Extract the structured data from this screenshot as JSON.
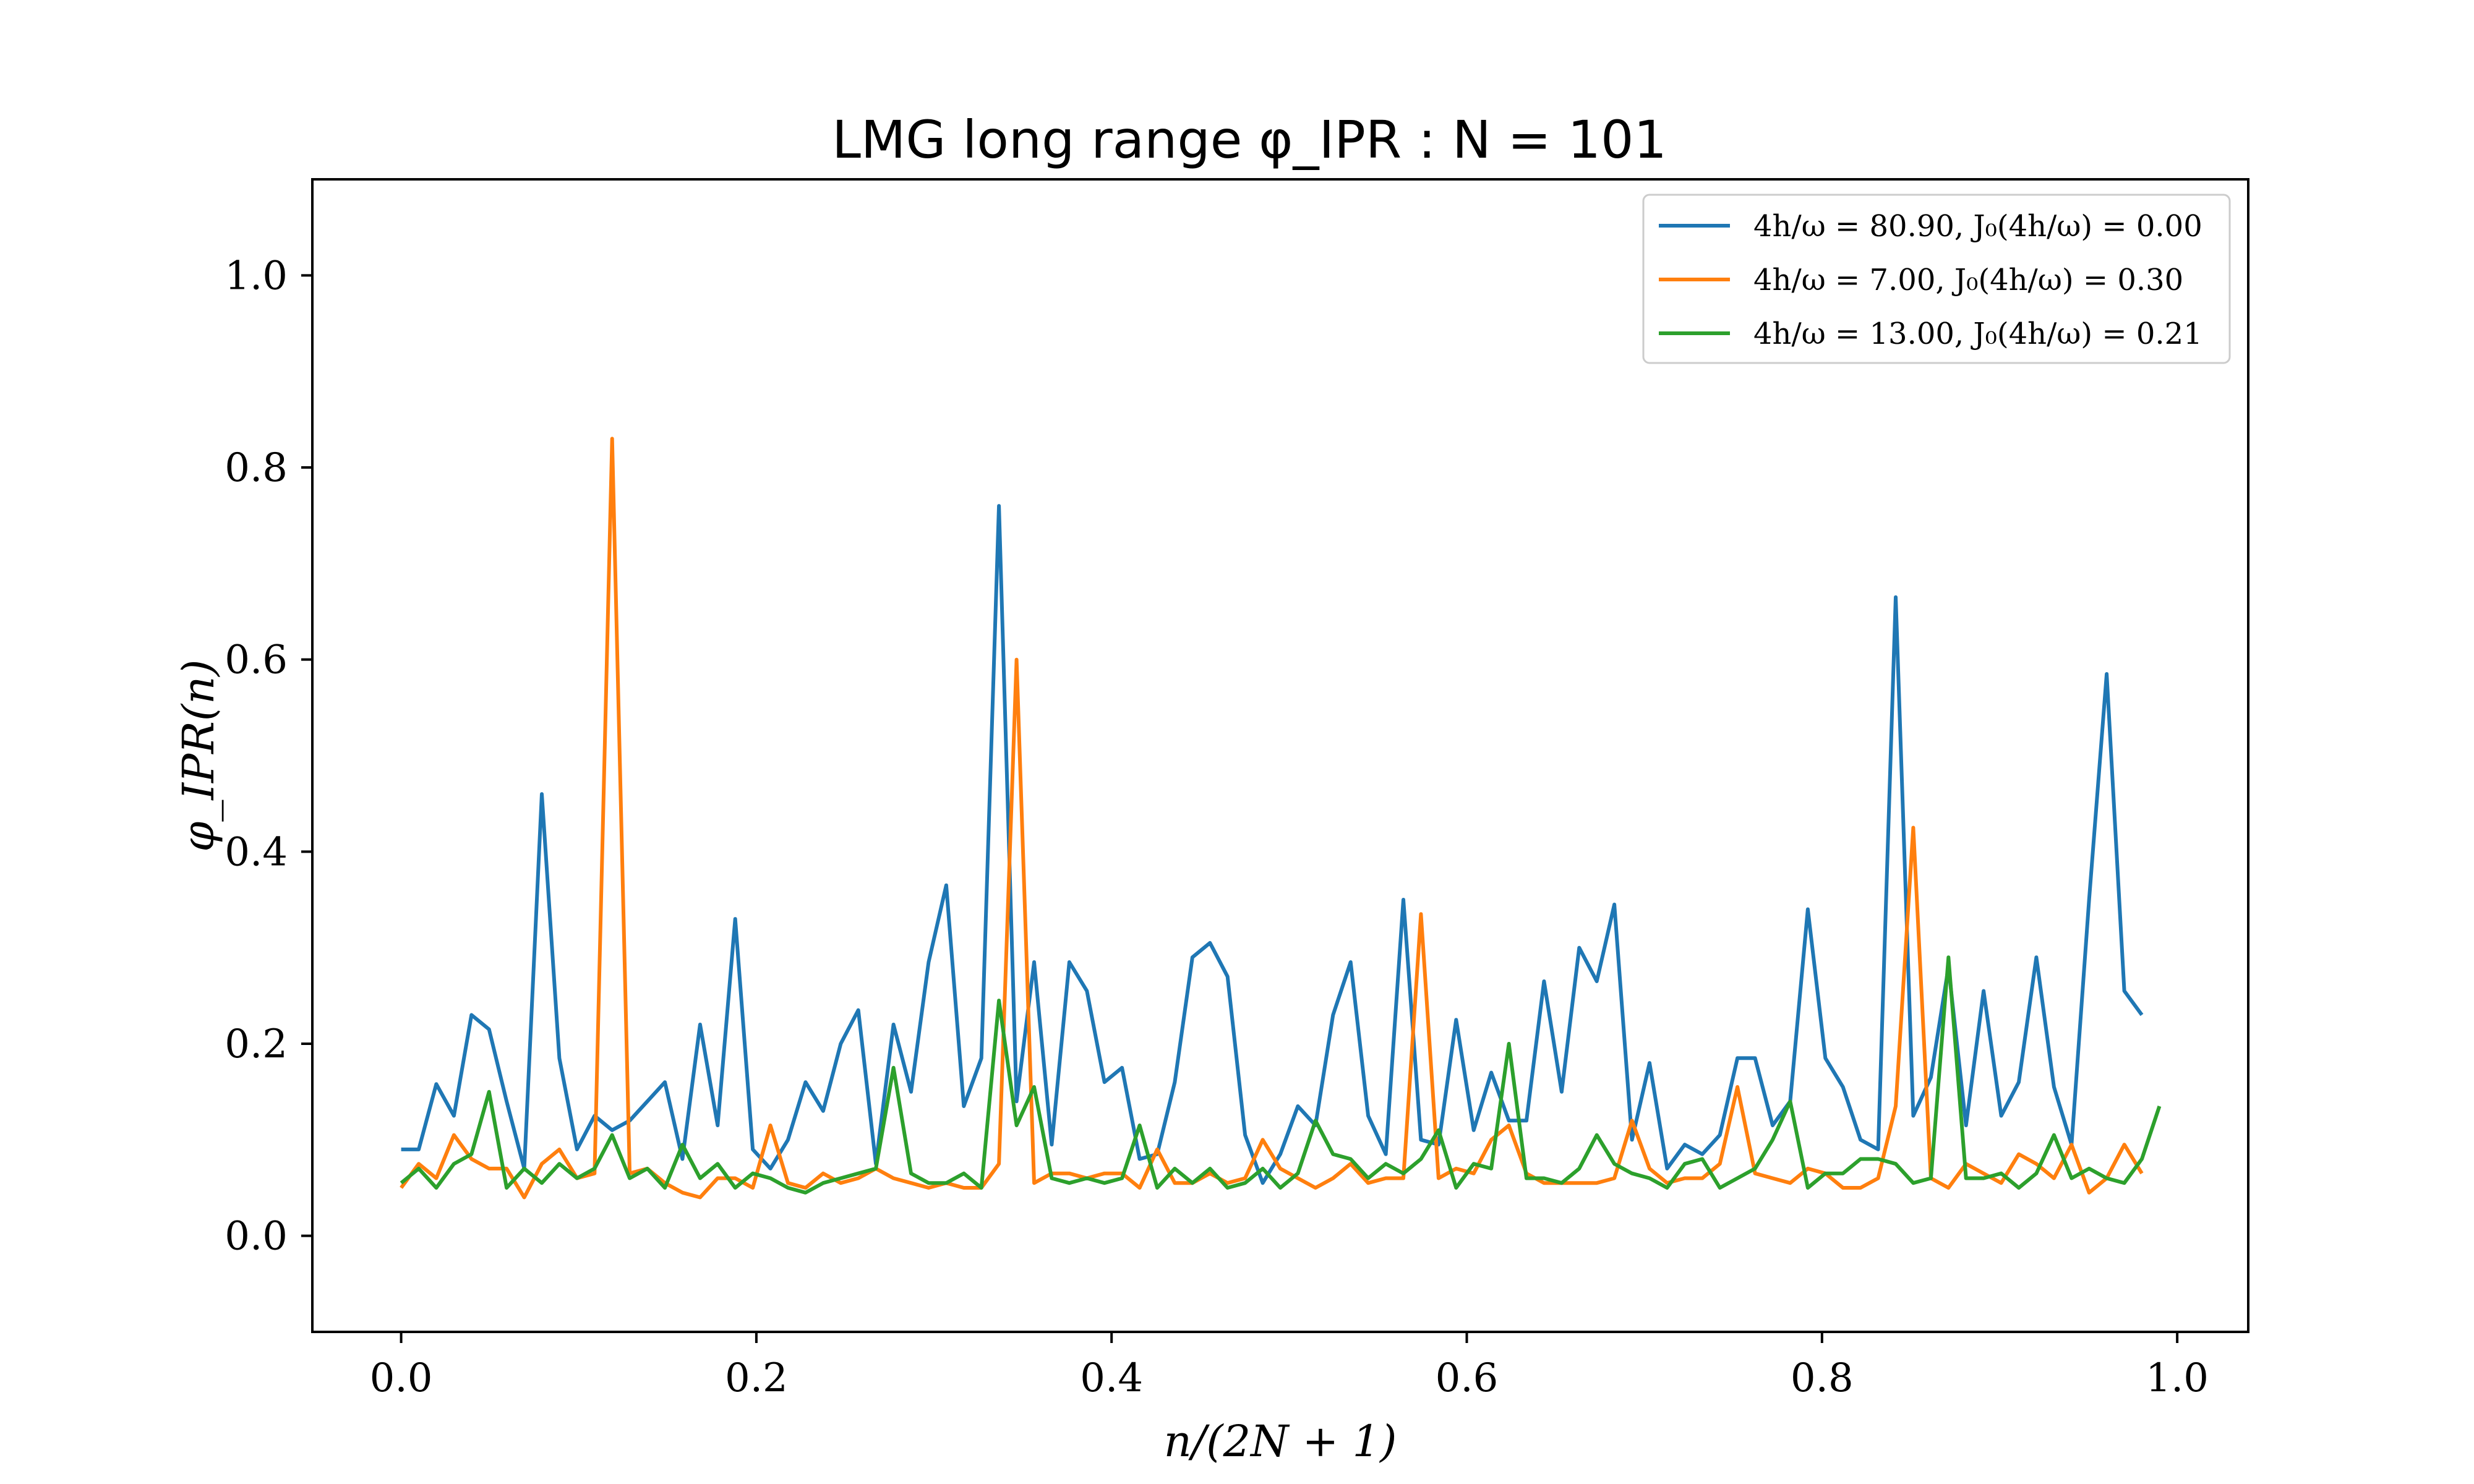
{
  "chart_data": {
    "type": "line",
    "title": "LMG long range φ_IPR : N = 101",
    "xlabel": "n/(2N + 1)",
    "ylabel": "φ_IPR(n)",
    "xlim": [
      -0.05,
      1.04
    ],
    "ylim": [
      -0.1,
      1.1
    ],
    "xticks": [
      0.0,
      0.2,
      0.4,
      0.6,
      0.8,
      1.0
    ],
    "xtick_labels": [
      "0.0",
      "0.2",
      "0.4",
      "0.6",
      "0.8",
      "1.0"
    ],
    "yticks": [
      0.0,
      0.2,
      0.4,
      0.6,
      0.8,
      1.0
    ],
    "ytick_labels": [
      "0.0",
      "0.2",
      "0.4",
      "0.6",
      "0.8",
      "1.0"
    ],
    "grid": false,
    "legend_position": "top-right",
    "x_start": 0.0,
    "x_step": 0.0099,
    "series": [
      {
        "name": "4h/ω = 80.90, J₀(4h/ω) = 0.00",
        "color": "#1f77b4",
        "values": [
          0.09,
          0.09,
          0.158,
          0.125,
          0.23,
          0.215,
          0.14,
          0.07,
          0.46,
          0.185,
          0.09,
          0.125,
          0.11,
          0.12,
          0.14,
          0.16,
          0.08,
          0.22,
          0.115,
          0.33,
          0.09,
          0.07,
          0.1,
          0.16,
          0.13,
          0.2,
          0.235,
          0.075,
          0.22,
          0.15,
          0.285,
          0.365,
          0.135,
          0.185,
          0.76,
          0.14,
          0.285,
          0.095,
          0.285,
          0.255,
          0.16,
          0.175,
          0.08,
          0.085,
          0.16,
          0.29,
          0.305,
          0.27,
          0.105,
          0.055,
          0.085,
          0.135,
          0.115,
          0.23,
          0.285,
          0.125,
          0.085,
          0.35,
          0.1,
          0.095,
          0.225,
          0.11,
          0.17,
          0.12,
          0.12,
          0.265,
          0.15,
          0.3,
          0.265,
          0.345,
          0.1,
          0.18,
          0.07,
          0.095,
          0.085,
          0.105,
          0.185,
          0.185,
          0.115,
          0.14,
          0.34,
          0.185,
          0.155,
          0.1,
          0.09,
          0.665,
          0.125,
          0.165,
          0.28,
          0.115,
          0.255,
          0.125,
          0.16,
          0.29,
          0.155,
          0.095,
          0.35,
          0.585,
          0.255,
          0.23
        ]
      },
      {
        "name": "4h/ω = 7.00, J₀(4h/ω) = 0.30",
        "color": "#ff7f0e",
        "values": [
          0.05,
          0.075,
          0.06,
          0.105,
          0.08,
          0.07,
          0.07,
          0.04,
          0.075,
          0.09,
          0.06,
          0.065,
          0.83,
          0.065,
          0.07,
          0.055,
          0.045,
          0.04,
          0.06,
          0.06,
          0.05,
          0.115,
          0.055,
          0.05,
          0.065,
          0.055,
          0.06,
          0.07,
          0.06,
          0.055,
          0.05,
          0.055,
          0.05,
          0.05,
          0.075,
          0.6,
          0.055,
          0.065,
          0.065,
          0.06,
          0.065,
          0.065,
          0.05,
          0.09,
          0.055,
          0.055,
          0.065,
          0.055,
          0.06,
          0.1,
          0.07,
          0.06,
          0.05,
          0.06,
          0.075,
          0.055,
          0.06,
          0.06,
          0.335,
          0.06,
          0.07,
          0.065,
          0.1,
          0.115,
          0.065,
          0.055,
          0.055,
          0.055,
          0.055,
          0.06,
          0.12,
          0.07,
          0.055,
          0.06,
          0.06,
          0.075,
          0.155,
          0.065,
          0.06,
          0.055,
          0.07,
          0.065,
          0.05,
          0.05,
          0.06,
          0.135,
          0.425,
          0.06,
          0.05,
          0.075,
          0.065,
          0.055,
          0.085,
          0.075,
          0.06,
          0.095,
          0.045,
          0.06,
          0.095,
          0.065
        ]
      },
      {
        "name": "4h/ω = 13.00, J₀(4h/ω) = 0.21",
        "color": "#2ca02c",
        "values": [
          0.055,
          0.07,
          0.05,
          0.075,
          0.085,
          0.15,
          0.05,
          0.07,
          0.055,
          0.075,
          0.06,
          0.07,
          0.105,
          0.06,
          0.07,
          0.05,
          0.095,
          0.06,
          0.075,
          0.05,
          0.065,
          0.06,
          0.05,
          0.045,
          0.055,
          0.06,
          0.065,
          0.07,
          0.175,
          0.065,
          0.055,
          0.055,
          0.065,
          0.05,
          0.245,
          0.115,
          0.155,
          0.06,
          0.055,
          0.06,
          0.055,
          0.06,
          0.115,
          0.05,
          0.07,
          0.055,
          0.07,
          0.05,
          0.055,
          0.07,
          0.05,
          0.065,
          0.12,
          0.085,
          0.08,
          0.06,
          0.075,
          0.065,
          0.08,
          0.11,
          0.05,
          0.075,
          0.07,
          0.2,
          0.06,
          0.06,
          0.055,
          0.07,
          0.105,
          0.075,
          0.065,
          0.06,
          0.05,
          0.075,
          0.08,
          0.05,
          0.06,
          0.07,
          0.1,
          0.14,
          0.05,
          0.065,
          0.065,
          0.08,
          0.08,
          0.075,
          0.055,
          0.06,
          0.29,
          0.06,
          0.06,
          0.065,
          0.05,
          0.065,
          0.105,
          0.06,
          0.07,
          0.06,
          0.055,
          0.08,
          0.135
        ]
      }
    ]
  }
}
